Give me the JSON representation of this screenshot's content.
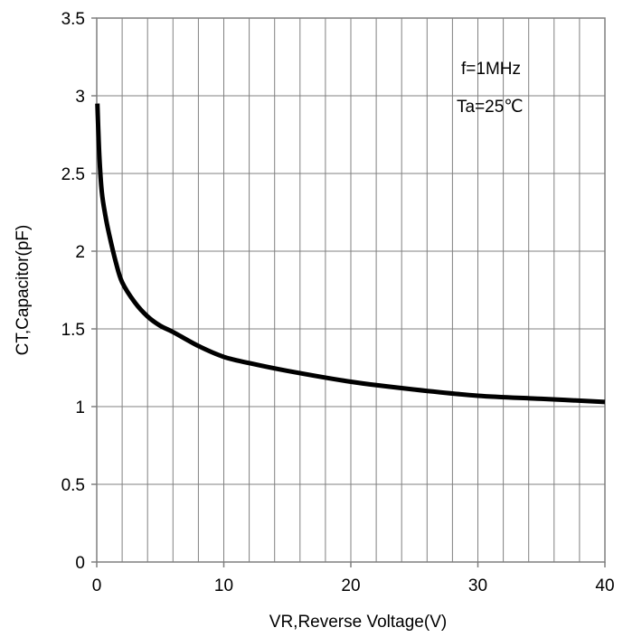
{
  "chart_data": {
    "type": "line",
    "title": "",
    "xlabel": "VR,Reverse Voltage(V)",
    "ylabel": "CT,Capacitor(pF)",
    "xlim": [
      0,
      40
    ],
    "ylim": [
      0,
      3.5
    ],
    "x_major_ticks": [
      0,
      10,
      20,
      30,
      40
    ],
    "x_tick_labels": [
      "0",
      "10",
      "20",
      "30",
      "40"
    ],
    "y_major_ticks": [
      0,
      0.5,
      1,
      1.5,
      2,
      2.5,
      3,
      3.5
    ],
    "y_tick_labels": [
      "0",
      "0.5",
      "1",
      "1.5",
      "2",
      "2.5",
      "3",
      "3.5"
    ],
    "x_minor_step": 2,
    "grid": true,
    "legend": "none",
    "annotations": [
      "f=1MHz",
      "Ta=25℃"
    ],
    "series": [
      {
        "color": "#000000",
        "x": [
          0.05,
          0.2,
          0.4,
          0.7,
          1,
          1.5,
          2,
          3,
          4,
          5,
          6,
          8,
          10,
          12,
          15,
          20,
          25,
          30,
          35,
          40
        ],
        "y": [
          2.95,
          2.62,
          2.38,
          2.22,
          2.1,
          1.93,
          1.8,
          1.67,
          1.58,
          1.52,
          1.48,
          1.39,
          1.32,
          1.28,
          1.23,
          1.16,
          1.11,
          1.07,
          1.05,
          1.03
        ]
      }
    ]
  }
}
